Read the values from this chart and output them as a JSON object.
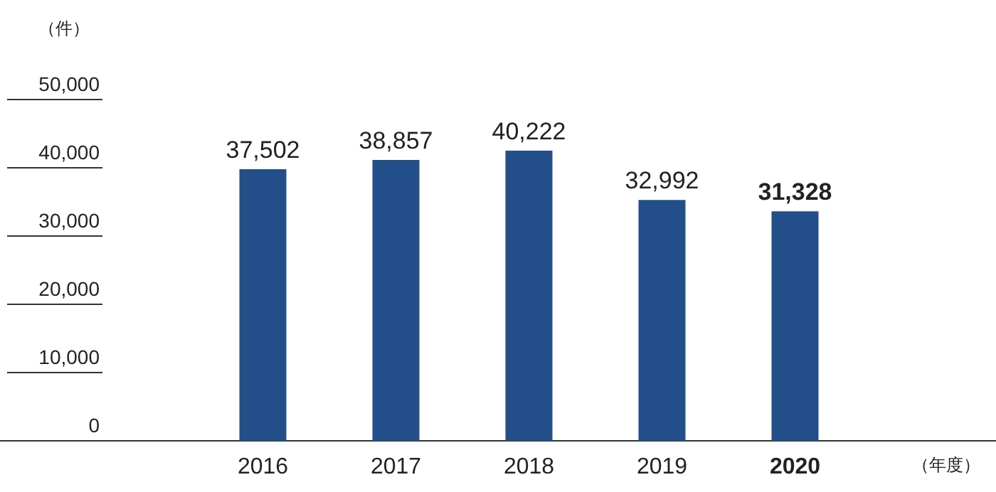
{
  "chart_data": {
    "type": "bar",
    "ylabel": "（件）",
    "xlabel": "（年度）",
    "categories": [
      "2016",
      "2017",
      "2018",
      "2019",
      "2020"
    ],
    "values": [
      37502,
      38857,
      40222,
      32992,
      31328
    ],
    "value_labels": [
      "37,502",
      "38,857",
      "40,222",
      "32,992",
      "31,328"
    ],
    "color": "#224f8a",
    "ylim": [
      0,
      50000
    ],
    "yticks": [
      {
        "value": 0,
        "label": "0"
      },
      {
        "value": 10000,
        "label": "10,000"
      },
      {
        "value": 20000,
        "label": "20,000"
      },
      {
        "value": 30000,
        "label": "30,000"
      },
      {
        "value": 40000,
        "label": "40,000"
      },
      {
        "value": 50000,
        "label": "50,000"
      }
    ],
    "grid": false
  }
}
